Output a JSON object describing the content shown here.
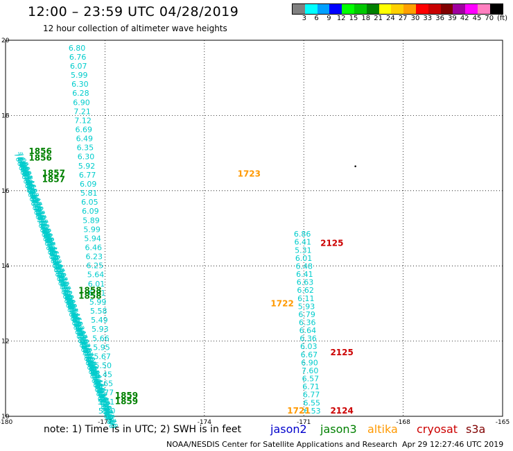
{
  "title": "12:00 – 23:59 UTC 04/28/2019",
  "subtitle": "12 hour collection of altimeter wave heights",
  "legend": {
    "colors": [
      "#808080",
      "#00ffff",
      "#00a0ff",
      "#0000ff",
      "#00ff00",
      "#00c800",
      "#008000",
      "#ffff00",
      "#ffd000",
      "#ffa000",
      "#ff0000",
      "#c80000",
      "#800000",
      "#a000a0",
      "#ff00ff",
      "#ff80c0",
      "#000000"
    ],
    "labels": [
      "3",
      "6",
      "9",
      "12",
      "15",
      "18",
      "21",
      "24",
      "27",
      "30",
      "33",
      "36",
      "39",
      "42",
      "45",
      "70"
    ],
    "unit": "(ft)"
  },
  "note": "note: 1) Time is in UTC; 2) SWH is in feet",
  "missions": [
    {
      "name": "jason2",
      "color": "#0000cc"
    },
    {
      "name": "jason3",
      "color": "#008000"
    },
    {
      "name": "altika",
      "color": "#ff9900"
    },
    {
      "name": "cryosat",
      "color": "#cc0000"
    },
    {
      "name": "s3a",
      "color": "#800000"
    }
  ],
  "footer_left": "NOAA/NESDIS Center for Satellite Applications and Research",
  "footer_right": "Apr 29 12:27:46 UTC 2019",
  "chart_data": {
    "type": "scatter",
    "xlim": [
      -180,
      -165
    ],
    "ylim": [
      10,
      20
    ],
    "xticks": [
      "-180",
      "-177",
      "-174",
      "-171",
      "-168",
      "-165"
    ],
    "yticks": [
      "10",
      "12",
      "14",
      "16",
      "18",
      "20"
    ],
    "grid": true,
    "tracks": [
      {
        "satellite": "jason3",
        "color": "#00cccc",
        "start": [
          -178.1,
          19.8
        ],
        "end": [
          -177.2,
          10.15
        ],
        "values": [
          "6.80",
          "6.76",
          "6.07",
          "5.99",
          "6.30",
          "6.28",
          "6.90",
          "7.21",
          "7.12",
          "6.69",
          "6.49",
          "6.35",
          "6.30",
          "5.92",
          "6.77",
          "6.09",
          "5.81",
          "6.05",
          "6.09",
          "5.89",
          "5.99",
          "5.94",
          "6.46",
          "6.23",
          "6.25",
          "5.64",
          "6.01",
          "6.21",
          "5.99",
          "5.58",
          "5.49",
          "5.93",
          "5.66",
          "5.95",
          "5.67",
          "5.50",
          "5.45",
          "5.65",
          "5.77",
          "5.41",
          "5.40"
        ]
      },
      {
        "satellite": "altika",
        "color": "#00cccc",
        "start": [
          -171.3,
          14.85
        ],
        "end": [
          -171.0,
          10.15
        ],
        "values": [
          "6.86",
          "6.41",
          "5.31",
          "6.01",
          "6.48",
          "6.41",
          "6.63",
          "6.62",
          "6.11",
          "5.93",
          "6.79",
          "6.36",
          "6.64",
          "6.36",
          "6.03",
          "6.67",
          "6.90",
          "7.60",
          "6.57",
          "6.71",
          "6.77",
          "6.55",
          "6.53"
        ]
      }
    ],
    "dense_tracks": [
      {
        "satellite": "jason2",
        "color": "#00cccc",
        "start": [
          -179.75,
          17.05
        ],
        "end": [
          -177.05,
          10.1
        ],
        "values": [
          "7.08",
          "6.96",
          "6.88",
          "6.81",
          "6.74",
          "6.66",
          "6.59",
          "6.52",
          "6.44",
          "6.37",
          "6.29",
          "6.22",
          "6.15",
          "6.07",
          "6.00"
        ]
      }
    ],
    "time_labels": [
      {
        "text": "1856",
        "x": -179.3,
        "y": 17.05,
        "color": "#008000"
      },
      {
        "text": "1856",
        "x": -179.3,
        "y": 16.87,
        "color": "#008000"
      },
      {
        "text": "1857",
        "x": -178.9,
        "y": 16.47,
        "color": "#008000"
      },
      {
        "text": "1857",
        "x": -178.9,
        "y": 16.3,
        "color": "#008000"
      },
      {
        "text": "1858",
        "x": -177.8,
        "y": 13.35,
        "color": "#008000"
      },
      {
        "text": "1858",
        "x": -177.8,
        "y": 13.2,
        "color": "#008000"
      },
      {
        "text": "1859",
        "x": -176.7,
        "y": 10.55,
        "color": "#008000"
      },
      {
        "text": "1859",
        "x": -176.7,
        "y": 10.4,
        "color": "#008000"
      },
      {
        "text": "1723",
        "x": -173.0,
        "y": 16.45,
        "color": "#ff9900"
      },
      {
        "text": "1722",
        "x": -172.0,
        "y": 13.0,
        "color": "#ff9900"
      },
      {
        "text": "1721",
        "x": -171.5,
        "y": 10.15,
        "color": "#ff9900"
      },
      {
        "text": "2125",
        "x": -170.5,
        "y": 14.6,
        "color": "#cc0000"
      },
      {
        "text": "2125",
        "x": -170.2,
        "y": 11.7,
        "color": "#cc0000"
      },
      {
        "text": "2124",
        "x": -170.2,
        "y": 10.15,
        "color": "#cc0000"
      }
    ]
  }
}
